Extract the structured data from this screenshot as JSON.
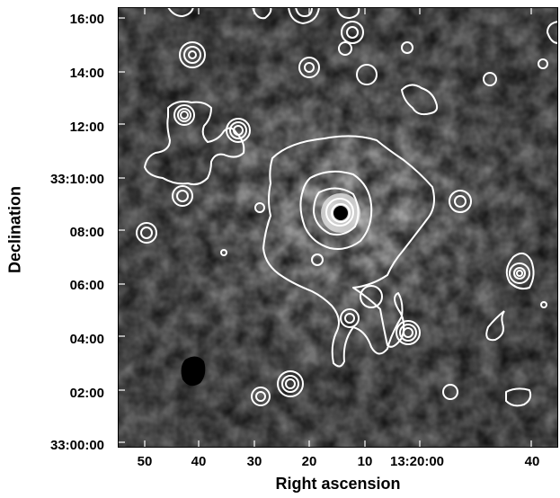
{
  "image": {
    "description_type": "astronomical X-ray contour map",
    "xlabel": "Right ascension",
    "ylabel": "Declination",
    "x_ticks": [
      "50",
      "40",
      "30",
      "20",
      "10",
      "13:20:00",
      "40"
    ],
    "y_ticks": [
      "16:00",
      "14:00",
      "12:00",
      "33:10:00",
      "08:00",
      "06:00",
      "04:00",
      "02:00",
      "33:00:00"
    ],
    "colors": {
      "background": "#5a5a5a",
      "contour": "#ffffff",
      "axis": "#000000"
    }
  }
}
